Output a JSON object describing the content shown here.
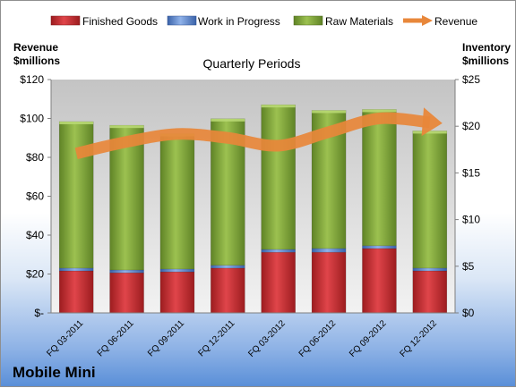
{
  "company": "Mobile Mini",
  "chart_data": {
    "type": "bar",
    "stacked": true,
    "title": "Quarterly Periods",
    "categories": [
      "FQ 03-2011",
      "FQ 06-2011",
      "FQ 09-2011",
      "FQ 12-2011",
      "FQ 03-2012",
      "FQ 06-2012",
      "FQ 09-2012",
      "FQ 12-2012"
    ],
    "left_axis": {
      "label_line1": "Revenue",
      "label_line2": "$millions",
      "ylim": [
        0,
        120
      ],
      "ticks": [
        0,
        20,
        40,
        60,
        80,
        100,
        120
      ],
      "tick_labels": [
        "$-",
        "$20",
        "$40",
        "$60",
        "$80",
        "$100",
        "$120"
      ]
    },
    "right_axis": {
      "label_line1": "Inventory",
      "label_line2": "$millions",
      "ylim": [
        0,
        25
      ],
      "ticks": [
        0,
        5,
        10,
        15,
        20,
        25
      ],
      "tick_labels": [
        "$0",
        "$5",
        "$10",
        "$15",
        "$20",
        "$25"
      ]
    },
    "series": [
      {
        "name": "Finished Goods",
        "axis": "right",
        "kind": "bar",
        "color": "#c0282b",
        "values": [
          4.5,
          4.3,
          4.4,
          4.8,
          6.5,
          6.5,
          6.9,
          4.5
        ]
      },
      {
        "name": "Work in Progress",
        "axis": "right",
        "kind": "bar",
        "color": "#4f7fc9",
        "values": [
          0.3,
          0.3,
          0.3,
          0.3,
          0.3,
          0.4,
          0.3,
          0.3
        ]
      },
      {
        "name": "Raw Materials",
        "axis": "right",
        "kind": "bar",
        "color": "#7fa43a",
        "values": [
          15.7,
          15.5,
          14.5,
          15.7,
          15.5,
          14.8,
          14.6,
          14.7
        ]
      },
      {
        "name": "Revenue",
        "axis": "left",
        "kind": "line-arrow",
        "color": "#e8873a",
        "values": [
          82,
          88,
          92,
          90,
          86,
          93,
          100,
          98
        ]
      }
    ],
    "grid": false,
    "legend_position": "top"
  }
}
